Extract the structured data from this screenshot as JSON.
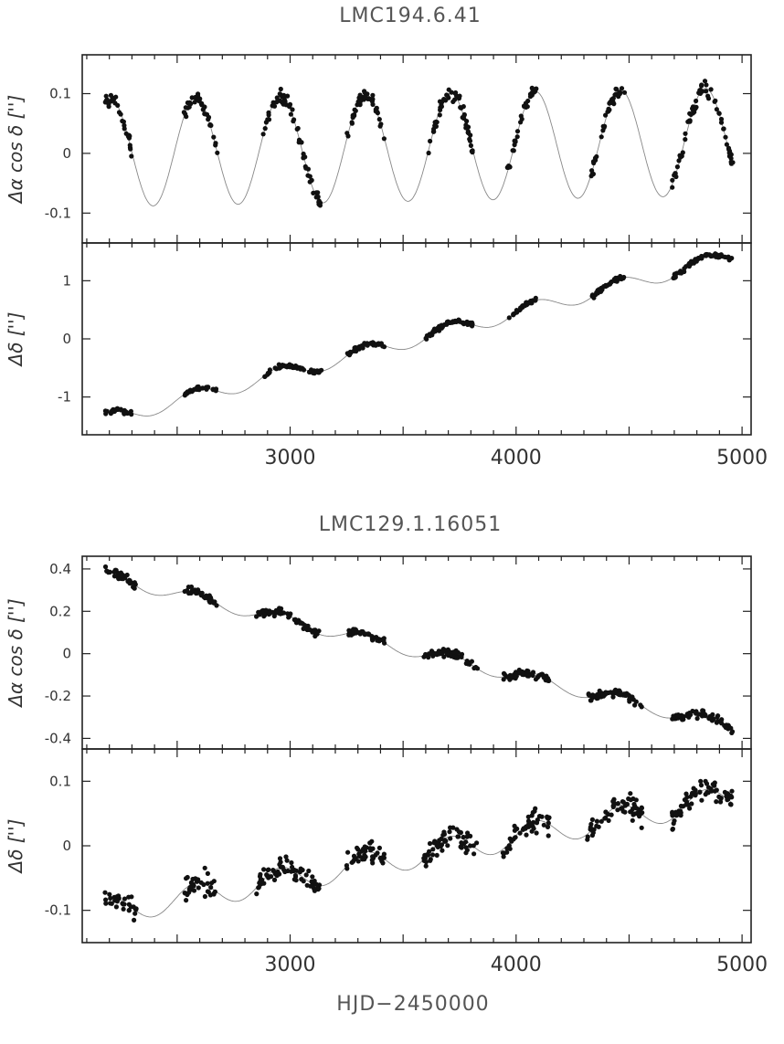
{
  "figure": {
    "xlabel": "HJD−2450000"
  },
  "chart_data": [
    {
      "type": "scatter",
      "title": "LMC194.6.41",
      "panels": [
        {
          "ylabel": "Δα cos δ ['']",
          "xlim": [
            2080,
            5040
          ],
          "ylim": [
            -0.15,
            0.165
          ],
          "yticks": [
            {
              "v": 0.1,
              "label": "0.1"
            },
            {
              "v": 0,
              "label": "0"
            },
            {
              "v": -0.1,
              "label": "-0.1"
            }
          ],
          "model": {
            "kind": "periodic",
            "period": 376,
            "phase": 2300,
            "amp": 0.09,
            "offset": 0.0,
            "offset_end": 0.02,
            "trend": 0.0
          }
        },
        {
          "ylabel": "Δδ ['']",
          "xlim": [
            2080,
            5040
          ],
          "ylim": [
            -1.65,
            1.65
          ],
          "yticks": [
            {
              "v": 1,
              "label": "1"
            },
            {
              "v": 0,
              "label": "0"
            },
            {
              "v": -1,
              "label": "-1"
            }
          ],
          "model": {
            "kind": "trend",
            "period": 376,
            "phase": 2300,
            "amp": 0.13,
            "start": -1.5,
            "end": 1.5
          }
        }
      ],
      "xticks": [
        {
          "v": 3000,
          "label": "3000"
        },
        {
          "v": 4000,
          "label": "4000"
        },
        {
          "v": 5000,
          "label": "5000"
        }
      ],
      "obs_seasons": [
        [
          2180,
          2300
        ],
        [
          2530,
          2680
        ],
        [
          2880,
          3140
        ],
        [
          3250,
          3420
        ],
        [
          3600,
          3810
        ],
        [
          3960,
          4090
        ],
        [
          4330,
          4480
        ],
        [
          4690,
          4960
        ]
      ]
    },
    {
      "type": "scatter",
      "title": "LMC129.1.16051",
      "panels": [
        {
          "ylabel": "Δα cos δ ['']",
          "xlim": [
            2080,
            5040
          ],
          "ylim": [
            -0.45,
            0.46
          ],
          "yticks": [
            {
              "v": 0.4,
              "label": "0.4"
            },
            {
              "v": 0.2,
              "label": "0.2"
            },
            {
              "v": 0,
              "label": "0"
            },
            {
              "v": -0.2,
              "label": "-0.2"
            },
            {
              "v": -0.4,
              "label": "-0.4"
            }
          ],
          "model": {
            "kind": "trend",
            "period": 376,
            "phase": 2300,
            "amp": 0.03,
            "start": 0.39,
            "end": -0.37
          }
        },
        {
          "ylabel": "Δδ ['']",
          "xlim": [
            2080,
            5040
          ],
          "ylim": [
            -0.15,
            0.15
          ],
          "yticks": [
            {
              "v": 0.1,
              "label": "0.1"
            },
            {
              "v": 0,
              "label": "0"
            },
            {
              "v": -0.1,
              "label": "-0.1"
            }
          ],
          "model": {
            "kind": "trend",
            "period": 376,
            "phase": 2300,
            "amp": 0.02,
            "start": -0.11,
            "end": 0.08
          }
        }
      ],
      "xticks": [
        {
          "v": 3000,
          "label": "3000"
        },
        {
          "v": 4000,
          "label": "4000"
        },
        {
          "v": 5000,
          "label": "5000"
        }
      ],
      "obs_seasons": [
        [
          2180,
          2320
        ],
        [
          2530,
          2680
        ],
        [
          2850,
          3130
        ],
        [
          3250,
          3420
        ],
        [
          3590,
          3830
        ],
        [
          3940,
          4150
        ],
        [
          4310,
          4560
        ],
        [
          4690,
          4960
        ]
      ]
    }
  ]
}
